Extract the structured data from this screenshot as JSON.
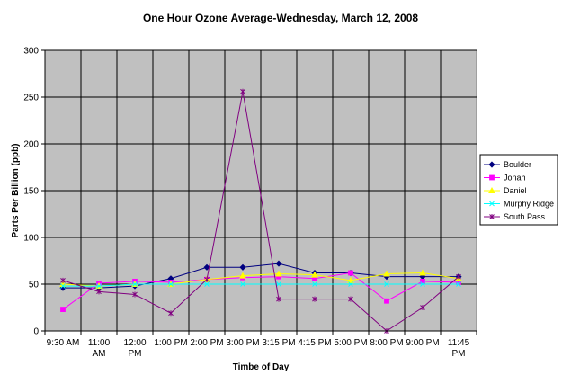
{
  "chart_data": {
    "type": "line",
    "title": "One Hour Ozone Average-Wednesday, March 12, 2008",
    "xlabel": "Timbe of Day",
    "ylabel": "Parts Per Billion (ppb)",
    "ylim": [
      0,
      300
    ],
    "yticks": [
      0,
      50,
      100,
      150,
      200,
      250,
      300
    ],
    "grid": true,
    "plot_background": "#c0c0c0",
    "legend_position": "right",
    "categories": [
      [
        "9:30 AM"
      ],
      [
        "11:00",
        "AM"
      ],
      [
        "12:00",
        "PM"
      ],
      [
        "1:00 PM"
      ],
      [
        "2:00 PM"
      ],
      [
        "3:00 PM"
      ],
      [
        "3:15 PM"
      ],
      [
        "4:15 PM"
      ],
      [
        "5:00 PM"
      ],
      [
        "8:00 PM"
      ],
      [
        "9:00 PM"
      ],
      [
        "11:45",
        "PM"
      ]
    ],
    "series": [
      {
        "name": "Boulder",
        "color": "#000080",
        "marker": "diamond",
        "values": [
          46,
          46,
          48,
          56,
          68,
          68,
          72,
          62,
          62,
          58,
          58,
          58
        ]
      },
      {
        "name": "Jonah",
        "color": "#ff00ff",
        "marker": "square",
        "values": [
          23,
          51,
          53,
          52,
          55,
          57,
          58,
          56,
          62,
          32,
          53,
          52
        ]
      },
      {
        "name": "Daniel",
        "color": "#ffff00",
        "marker": "triangle",
        "values": [
          50,
          48,
          50,
          50,
          55,
          59,
          61,
          60,
          54,
          61,
          62,
          56
        ]
      },
      {
        "name": "Murphy Ridge",
        "color": "#00ffff",
        "marker": "x",
        "values": [
          48,
          48,
          50,
          50,
          50,
          50,
          50,
          50,
          50,
          50,
          50,
          50
        ]
      },
      {
        "name": "South Pass",
        "color": "#800080",
        "marker": "star",
        "values": [
          54,
          42,
          39,
          19,
          55,
          256,
          34,
          34,
          34,
          0,
          25,
          58
        ]
      }
    ]
  }
}
